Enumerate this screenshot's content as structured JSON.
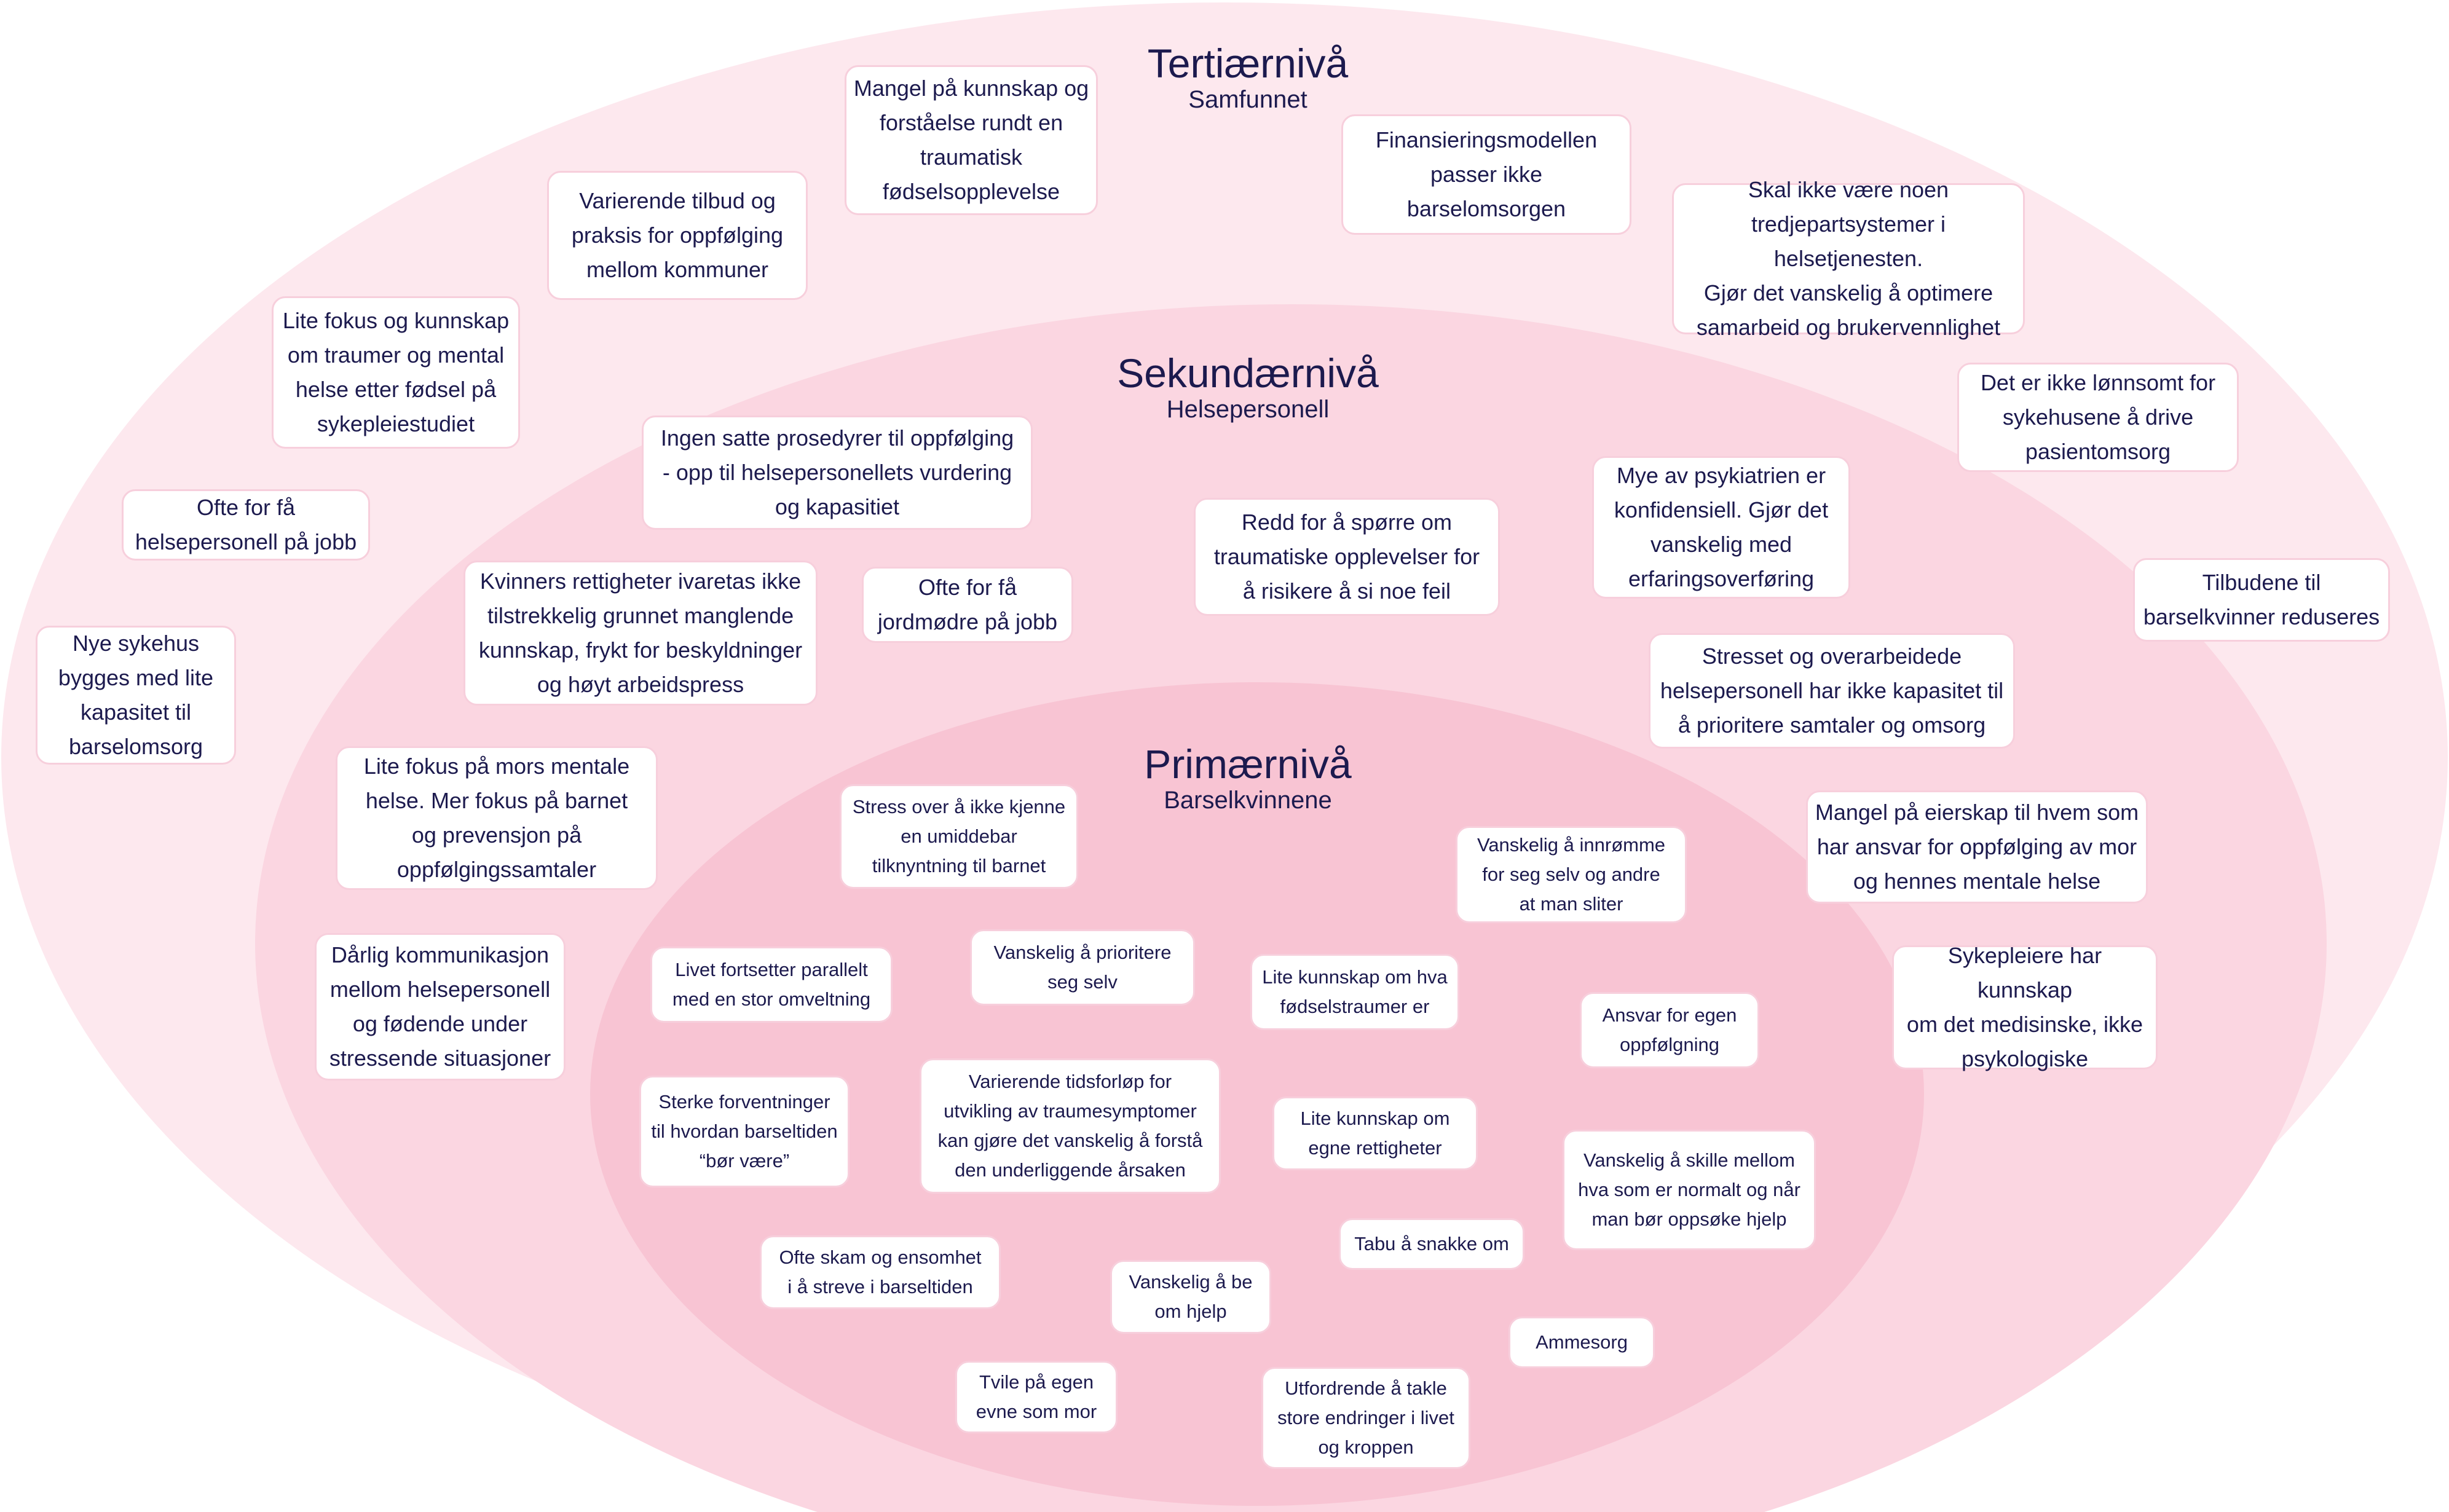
{
  "colors": {
    "outer_fill": "#fde8ee",
    "middle_fill": "#fbd6e1",
    "inner_fill": "#f8c4d3",
    "box_border": "#f7cfdc",
    "text": "#1c1a4e"
  },
  "levels": {
    "tertiary": {
      "title": "Tertiærnivå",
      "subtitle": "Samfunnet"
    },
    "secondary": {
      "title": "Sekundærnivå",
      "subtitle": "Helsepersonell"
    },
    "primary": {
      "title": "Primærnivå",
      "subtitle": "Barselkvinnene"
    }
  },
  "tertiary_items": [
    "Mangel på kunnskap og\nforståelse rundt en\ntraumatisk\nfødselsopplevelse",
    "Finansieringsmodellen\npasser ikke barselomsorgen",
    "Varierende tilbud og\npraksis for oppfølging\nmellom kommuner",
    "Skal ikke være noen\ntredjepartsystemer i helsetjenesten.\nGjør det vanskelig å optimere\nsamarbeid og brukervennlighet",
    "Lite fokus og kunnskap\nom traumer og mental\nhelse etter fødsel på\nsykepleiestudiet",
    "Det er ikke lønnsomt for\nsykehusene å drive\npasientomsorg",
    "Ofte for få\nhelsepersonell på jobb",
    "Tilbudene til\nbarselkvinner reduseres",
    "Nye sykehus\nbygges med lite\nkapasitet til\nbarselomsorg"
  ],
  "secondary_items": [
    "Ingen satte prosedyrer til oppfølging\n- opp til helsepersonellets vurdering\nog kapasitiet",
    "Mye av psykiatrien er\nkonfidensiell. Gjør det\nvanskelig med\nerfaringsoverføring",
    "Redd for å spørre om\ntraumatiske opplevelser for\nå risikere å si noe feil",
    "Kvinners rettigheter ivaretas ikke\ntilstrekkelig grunnet manglende\nkunnskap, frykt for beskyldninger\nog høyt arbeidspress",
    "Ofte for få\njordmødre på jobb",
    "Stresset og overarbeidede\nhelsepersonell har ikke kapasitet til\nå prioritere samtaler og omsorg",
    "Lite fokus på mors mentale\nhelse. Mer fokus på barnet\nog prevensjon på\noppfølgingssamtaler",
    "Mangel på eierskap til hvem som\nhar ansvar for oppfølging av mor\nog hennes mentale helse",
    "Dårlig kommunikasjon\nmellom helsepersonell\nog fødende under\nstressende situasjoner",
    "Sykepleiere har kunnskap\nom det medisinske, ikke\npsykologiske"
  ],
  "primary_items": [
    "Stress over å ikke kjenne\nen umiddebar\ntilknyntning til barnet",
    "Vanskelig å innrømme\nfor seg selv og andre\nat man sliter",
    "Livet fortsetter parallelt\nmed en stor omveltning",
    "Vanskelig å prioritere\nseg selv",
    "Lite kunnskap om hva\nfødselstraumer er",
    "Ansvar for egen\noppfølgning",
    "Sterke forventninger\ntil hvordan barseltiden\n“bør være”",
    "Varierende tidsforløp for\nutvikling av traumesymptomer\nkan gjøre det vanskelig å forstå\nden underliggende årsaken",
    "Lite kunnskap om\negne rettigheter",
    "Vanskelig å skille mellom\nhva som er normalt og når\nman bør oppsøke hjelp",
    "Tabu å snakke om",
    "Ofte skam og ensomhet\ni å streve i barseltiden",
    "Vanskelig å be\nom hjelp",
    "Ammesorg",
    "Tvile på egen\nevne som mor",
    "Utfordrende å takle\nstore endringer i livet\nog kroppen"
  ]
}
